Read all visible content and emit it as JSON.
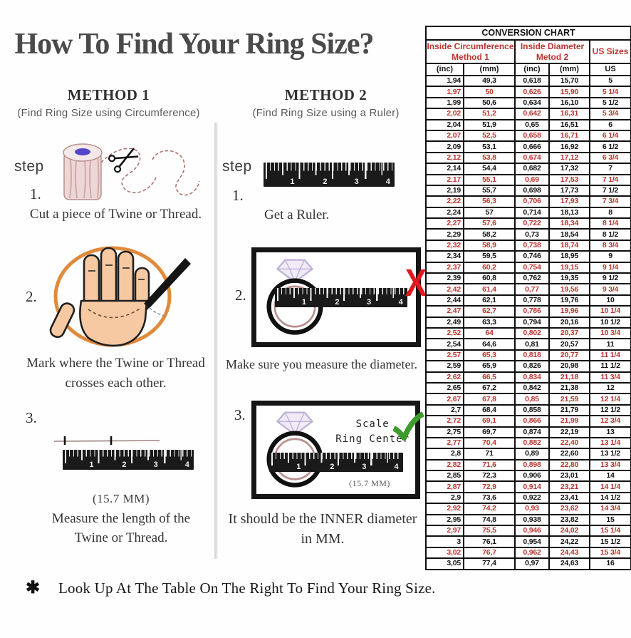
{
  "title": "How To Find Your Ring Size?",
  "method1": {
    "heading": "METHOD 1",
    "subtitle": "(Find Ring Size using Circumference)",
    "step_label": "step",
    "step1_num": "1.",
    "step1_caption": "Cut a piece of Twine or Thread.",
    "step2_num": "2.",
    "step2_caption1": "Mark where the Twine or Thread",
    "step2_caption2": "crosses each other.",
    "step3_num": "3.",
    "step3_note": "(15.7 MM)",
    "step3_caption1": "Measure the length of the",
    "step3_caption2": "Twine or Thread."
  },
  "method2": {
    "heading": "METHOD 2",
    "subtitle": "(Find Ring Size using a Ruler)",
    "step_label": "step",
    "step1_num": "1.",
    "step1_caption": "Get a Ruler.",
    "step2_num": "2.",
    "step2_caption": "Make sure you measure the diameter.",
    "step3_num": "3.",
    "scale_line1": "Scale",
    "scale_line2": "Ring Center",
    "step3_note": "(15.7 MM)",
    "step3_caption1": "It should be the INNER diameter",
    "step3_caption2": "in MM."
  },
  "ruler": {
    "numbers": [
      "1",
      "2",
      "3",
      "4"
    ]
  },
  "footer": {
    "bullet": "✱",
    "text": "Look Up At The Table On The Right To Find Your Ring Size."
  },
  "colors": {
    "accent_red": "#bd3430",
    "x_mark_red": "#e0181f",
    "check_green": "#3f9b2e",
    "ring_inner": "#bb9090",
    "twine_circle_orange": "#e08a3c"
  },
  "conversion_chart": {
    "title": "CONVERSION CHART",
    "group1_line1": "Inside Circumference",
    "group1_line2": "Method 1",
    "group2_line1": "Inside Diameter",
    "group2_line2": "Metod 2",
    "group3": "US Sizes",
    "columns": [
      "(inc)",
      "(mm)",
      "(inc)",
      "(mm)",
      "US"
    ],
    "rows": [
      [
        "1,94",
        "49,3",
        "0,618",
        "15,70",
        "5"
      ],
      [
        "1,97",
        "50",
        "0,626",
        "15,90",
        "5 1/4"
      ],
      [
        "1,99",
        "50,6",
        "0,634",
        "16,10",
        "5 1/2"
      ],
      [
        "2,02",
        "51,2",
        "0,642",
        "16,31",
        "5 3/4"
      ],
      [
        "2,04",
        "51,9",
        "0,65",
        "16,51",
        "6"
      ],
      [
        "2,07",
        "52,5",
        "0,658",
        "16,71",
        "6 1/4"
      ],
      [
        "2,09",
        "53,1",
        "0,666",
        "16,92",
        "6 1/2"
      ],
      [
        "2,12",
        "53,8",
        "0,674",
        "17,12",
        "6 3/4"
      ],
      [
        "2,14",
        "54,4",
        "0,682",
        "17,32",
        "7"
      ],
      [
        "2,17",
        "55,1",
        "0,69",
        "17,53",
        "7 1/4"
      ],
      [
        "2,19",
        "55,7",
        "0,698",
        "17,73",
        "7 1/2"
      ],
      [
        "2,22",
        "56,3",
        "0,706",
        "17,93",
        "7 3/4"
      ],
      [
        "2,24",
        "57",
        "0,714",
        "18,13",
        "8"
      ],
      [
        "2,27",
        "57,6",
        "0,722",
        "18,34",
        "8 1/4"
      ],
      [
        "2,29",
        "58,2",
        "0,73",
        "18,54",
        "8 1/2"
      ],
      [
        "2,32",
        "58,9",
        "0,738",
        "18,74",
        "8 3/4"
      ],
      [
        "2,34",
        "59,5",
        "0,746",
        "18,95",
        "9"
      ],
      [
        "2,37",
        "60,2",
        "0,754",
        "19,15",
        "9 1/4"
      ],
      [
        "2,39",
        "60,8",
        "0,762",
        "19,35",
        "9 1/2"
      ],
      [
        "2,42",
        "61,4",
        "0,77",
        "19,56",
        "9 3/4"
      ],
      [
        "2,44",
        "62,1",
        "0,778",
        "19,76",
        "10"
      ],
      [
        "2,47",
        "62,7",
        "0,786",
        "19,96",
        "10 1/4"
      ],
      [
        "2,49",
        "63,3",
        "0,794",
        "20,16",
        "10 1/2"
      ],
      [
        "2,52",
        "64",
        "0,802",
        "20,37",
        "10 3/4"
      ],
      [
        "2,54",
        "64,6",
        "0,81",
        "20,57",
        "11"
      ],
      [
        "2,57",
        "65,3",
        "0,818",
        "20,77",
        "11 1/4"
      ],
      [
        "2,59",
        "65,9",
        "0,826",
        "20,98",
        "11 1/2"
      ],
      [
        "2,62",
        "66,5",
        "0,834",
        "21,18",
        "11 3/4"
      ],
      [
        "2,65",
        "67,2",
        "0,842",
        "21,38",
        "12"
      ],
      [
        "2,67",
        "67,8",
        "0,85",
        "21,59",
        "12 1/4"
      ],
      [
        "2,7",
        "68,4",
        "0,858",
        "21,79",
        "12 1/2"
      ],
      [
        "2,72",
        "69,1",
        "0,866",
        "21,99",
        "12 3/4"
      ],
      [
        "2,75",
        "69,7",
        "0,874",
        "22,19",
        "13"
      ],
      [
        "2,77",
        "70,4",
        "0,882",
        "22,40",
        "13 1/4"
      ],
      [
        "2,8",
        "71",
        "0,89",
        "22,60",
        "13 1/2"
      ],
      [
        "2,82",
        "71,6",
        "0,898",
        "22,80",
        "13 3/4"
      ],
      [
        "2,85",
        "72,3",
        "0,906",
        "23,01",
        "14"
      ],
      [
        "2,87",
        "72,9",
        "0,914",
        "23,21",
        "14 1/4"
      ],
      [
        "2,9",
        "73,6",
        "0,922",
        "23,41",
        "14 1/2"
      ],
      [
        "2,92",
        "74,2",
        "0,93",
        "23,62",
        "14 3/4"
      ],
      [
        "2,95",
        "74,8",
        "0,938",
        "23,82",
        "15"
      ],
      [
        "2,97",
        "75,5",
        "0,946",
        "24,02",
        "15 1/4"
      ],
      [
        "3",
        "76,1",
        "0,954",
        "24,22",
        "15 1/2"
      ],
      [
        "3,02",
        "76,7",
        "0,962",
        "24,43",
        "15 3/4"
      ],
      [
        "3,05",
        "77,4",
        "0,97",
        "24,63",
        "16"
      ]
    ]
  }
}
